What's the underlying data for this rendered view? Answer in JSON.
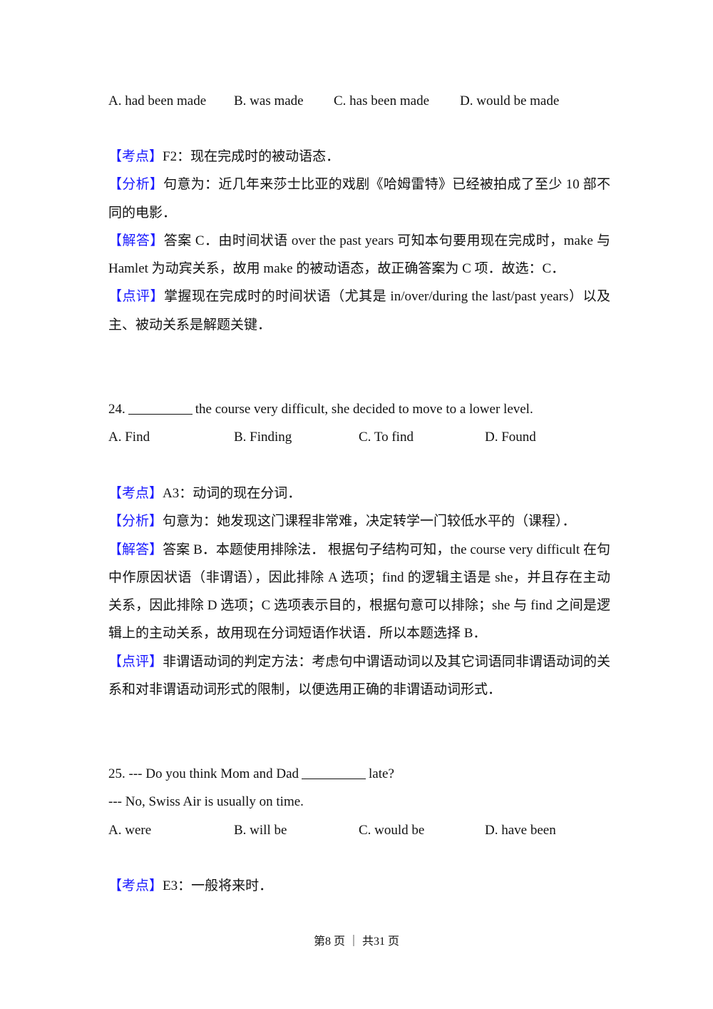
{
  "q23": {
    "options": [
      "A. had been made",
      "B. was made",
      "C. has been made",
      "D. would be made"
    ],
    "kaodian_tag": "【考点】",
    "kaodian": "F2：现在完成时的被动语态．",
    "fenxi_tag": "【分析】",
    "fenxi": "句意为：近几年来莎士比亚的戏剧《哈姆雷特》已经被拍成了至少 10 部不同的电影．",
    "jieda_tag": "【解答】",
    "jieda": "答案 C．由时间状语 over the past years 可知本句要用现在完成时，make 与 Hamlet 为动宾关系，故用 make 的被动语态，故正确答案为 C 项．故选：C．",
    "dianping_tag": "【点评】",
    "dianping": "掌握现在完成时的时间状语（尤其是 in/over/during the last/past years）以及主、被动关系是解题关键．"
  },
  "q24": {
    "number": "24.",
    "stem": "the course very difficult, she decided to move to a lower level.",
    "options": [
      "A. Find",
      "B. Finding",
      "C. To find",
      "D. Found"
    ],
    "kaodian_tag": "【考点】",
    "kaodian": "A3：动词的现在分词．",
    "fenxi_tag": "【分析】",
    "fenxi": "句意为：她发现这门课程非常难，决定转学一门较低水平的（课程）．",
    "jieda_tag": "【解答】",
    "jieda": "答案 B．本题使用排除法． 根据句子结构可知，the course very difficult 在句中作原因状语（非谓语），因此排除 A 选项；find 的逻辑主语是 she，并且存在主动关系，因此排除 D 选项；C 选项表示目的，根据句意可以排除；she 与 find 之间是逻辑上的主动关系，故用现在分词短语作状语．所以本题选择 B．",
    "dianping_tag": "【点评】",
    "dianping": "非谓语动词的判定方法：考虑句中谓语动词以及其它词语同非谓语动词的关系和对非谓语动词形式的限制，以便选用正确的非谓语动词形式．"
  },
  "q25": {
    "stem_before": "25. --- Do you think Mom and Dad",
    "stem_after": "late?",
    "reply": "--- No, Swiss Air is usually on time.",
    "options": [
      "A. were",
      "B. will be",
      "C. would be",
      "D. have been"
    ],
    "kaodian_tag": "【考点】",
    "kaodian": "E3：一般将来时．"
  },
  "footer": "第8 页 ｜ 共31 页",
  "colors": {
    "tag": "#1a1aff",
    "text": "#111111"
  }
}
